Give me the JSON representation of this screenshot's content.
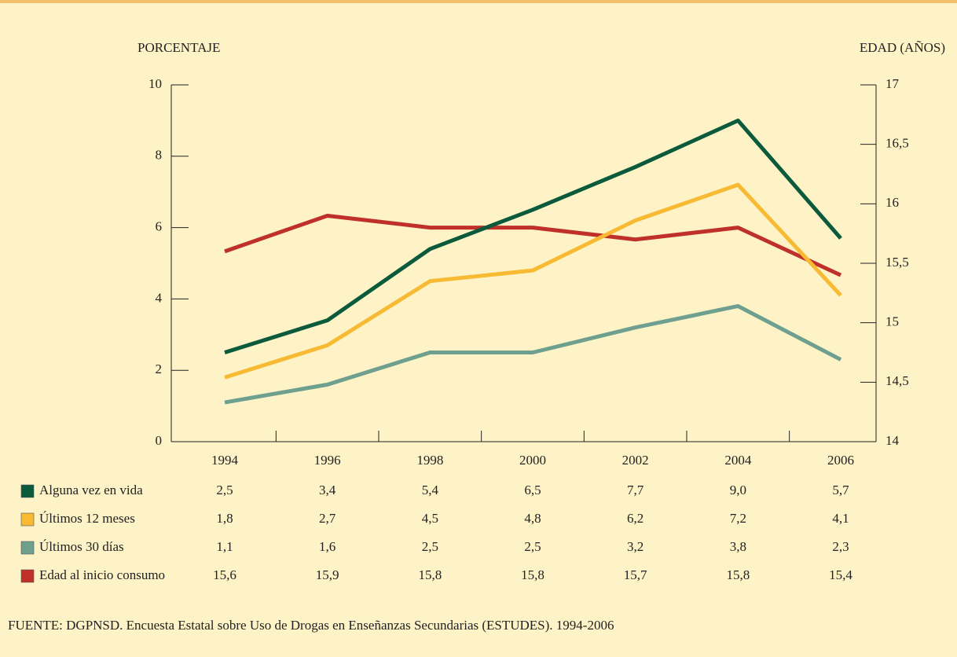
{
  "chart_data": {
    "type": "line",
    "y_label": "PORCENTAJE",
    "y2_label": "EDAD (AÑOS)",
    "source": "FUENTE: DGPNSD. Encuesta Estatal sobre Uso de Drogas en Enseñanzas Secundarias (ESTUDES). 1994-2006",
    "categories": [
      "1994",
      "1996",
      "1998",
      "2000",
      "2002",
      "2004",
      "2006"
    ],
    "ylim": [
      0,
      10
    ],
    "yticks": [
      0,
      2,
      4,
      6,
      8,
      10
    ],
    "y2lim": [
      14,
      17
    ],
    "y2ticks": [
      14,
      {
        "value": 14.5,
        "label": "14,5"
      },
      15,
      {
        "value": 15.5,
        "label": "15,5"
      },
      16,
      {
        "value": 16.5,
        "label": "16,5"
      },
      17
    ],
    "series": [
      {
        "name": "Alguna vez en vida",
        "color": "#0b5a3c",
        "values": [
          2.5,
          3.4,
          5.4,
          6.5,
          7.7,
          9.0,
          5.7
        ],
        "value_labels": [
          "2,5",
          "3,4",
          "5,4",
          "6,5",
          "7,7",
          "9,0",
          "5,7"
        ]
      },
      {
        "name": "Últimos 12 meses",
        "color": "#f8b933",
        "values": [
          1.8,
          2.7,
          4.5,
          4.8,
          6.2,
          7.2,
          4.1
        ],
        "value_labels": [
          "1,8",
          "2,7",
          "4,5",
          "4,8",
          "6,2",
          "7,2",
          "4,1"
        ]
      },
      {
        "name": "Últimos 30 días",
        "color": "#6f9f8f",
        "values": [
          1.1,
          1.6,
          2.5,
          2.5,
          3.2,
          3.8,
          2.3
        ],
        "value_labels": [
          "1,1",
          "1,6",
          "2,5",
          "2,5",
          "3,2",
          "3,8",
          "2,3"
        ]
      },
      {
        "name": "Edad al inicio consumo",
        "color": "#c0302a",
        "axis": "y2",
        "values": [
          15.6,
          15.9,
          15.8,
          15.8,
          15.7,
          15.8,
          15.4
        ],
        "value_labels": [
          "15,6",
          "15,9",
          "15,8",
          "15,8",
          "15,7",
          "15,8",
          "15,4"
        ]
      }
    ]
  }
}
